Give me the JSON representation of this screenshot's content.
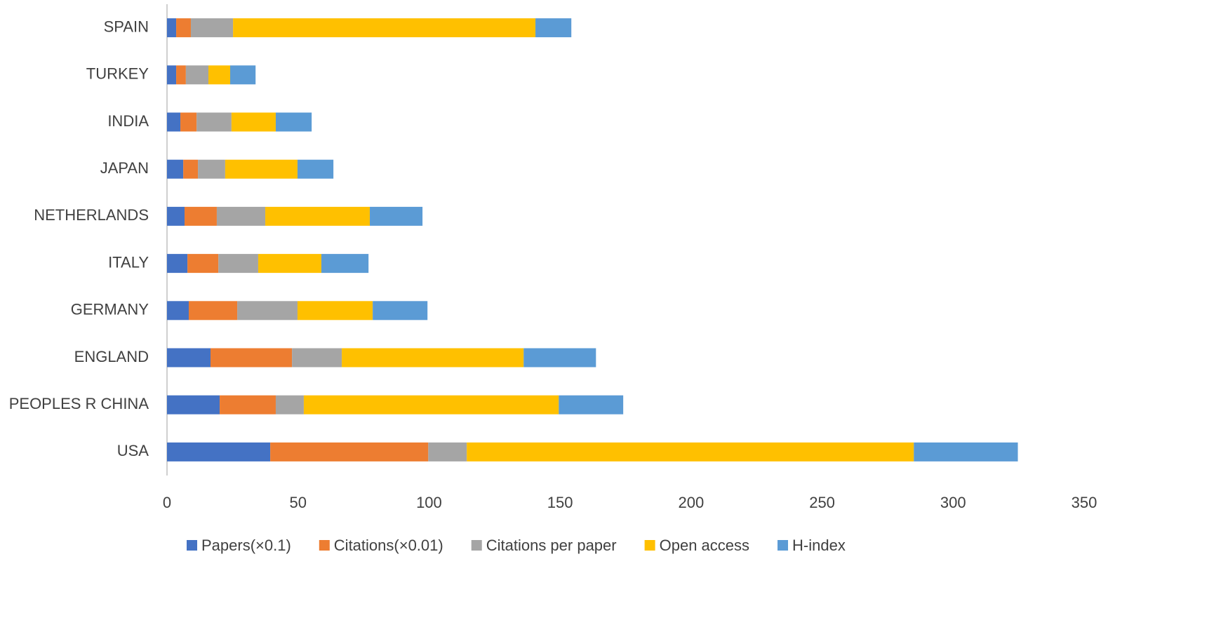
{
  "chart_data": {
    "type": "stacked-bar-horizontal",
    "categories": [
      "USA",
      "PEOPLES R CHINA",
      "ENGLAND",
      "GERMANY",
      "ITALY",
      "NETHERLANDS",
      "JAPAN",
      "INDIA",
      "TURKEY",
      "SPAIN"
    ],
    "series": [
      {
        "name": "Papers(×0.1)",
        "color": "#4472c4",
        "values": [
          39.4,
          20.1,
          16.6,
          8.3,
          7.8,
          6.7,
          6.2,
          5.1,
          3.5,
          3.5
        ]
      },
      {
        "name": "Citations(×0.01)",
        "color": "#ed7d31",
        "values": [
          60.3,
          21.4,
          31.1,
          18.5,
          11.8,
          12.3,
          5.6,
          6.2,
          3.7,
          5.6
        ]
      },
      {
        "name": "Citations per paper",
        "color": "#a5a5a5",
        "values": [
          14.7,
          10.7,
          19,
          23,
          15.2,
          18.5,
          10.4,
          13.3,
          8.6,
          16.1
        ]
      },
      {
        "name": "Open access",
        "color": "#ffc000",
        "values": [
          170.6,
          97.3,
          69.4,
          28.7,
          24.1,
          39.9,
          27.6,
          16.9,
          8.3,
          115.4
        ]
      },
      {
        "name": "H-index",
        "color": "#5b9bd5",
        "values": [
          39.7,
          24.6,
          27.6,
          20.9,
          18,
          20.1,
          13.7,
          13.7,
          9.7,
          13.7
        ]
      }
    ],
    "xlim": [
      0,
      350
    ],
    "xticks": [
      0,
      50,
      100,
      150,
      200,
      250,
      300,
      350
    ],
    "grid": false,
    "legend": "bottom"
  }
}
